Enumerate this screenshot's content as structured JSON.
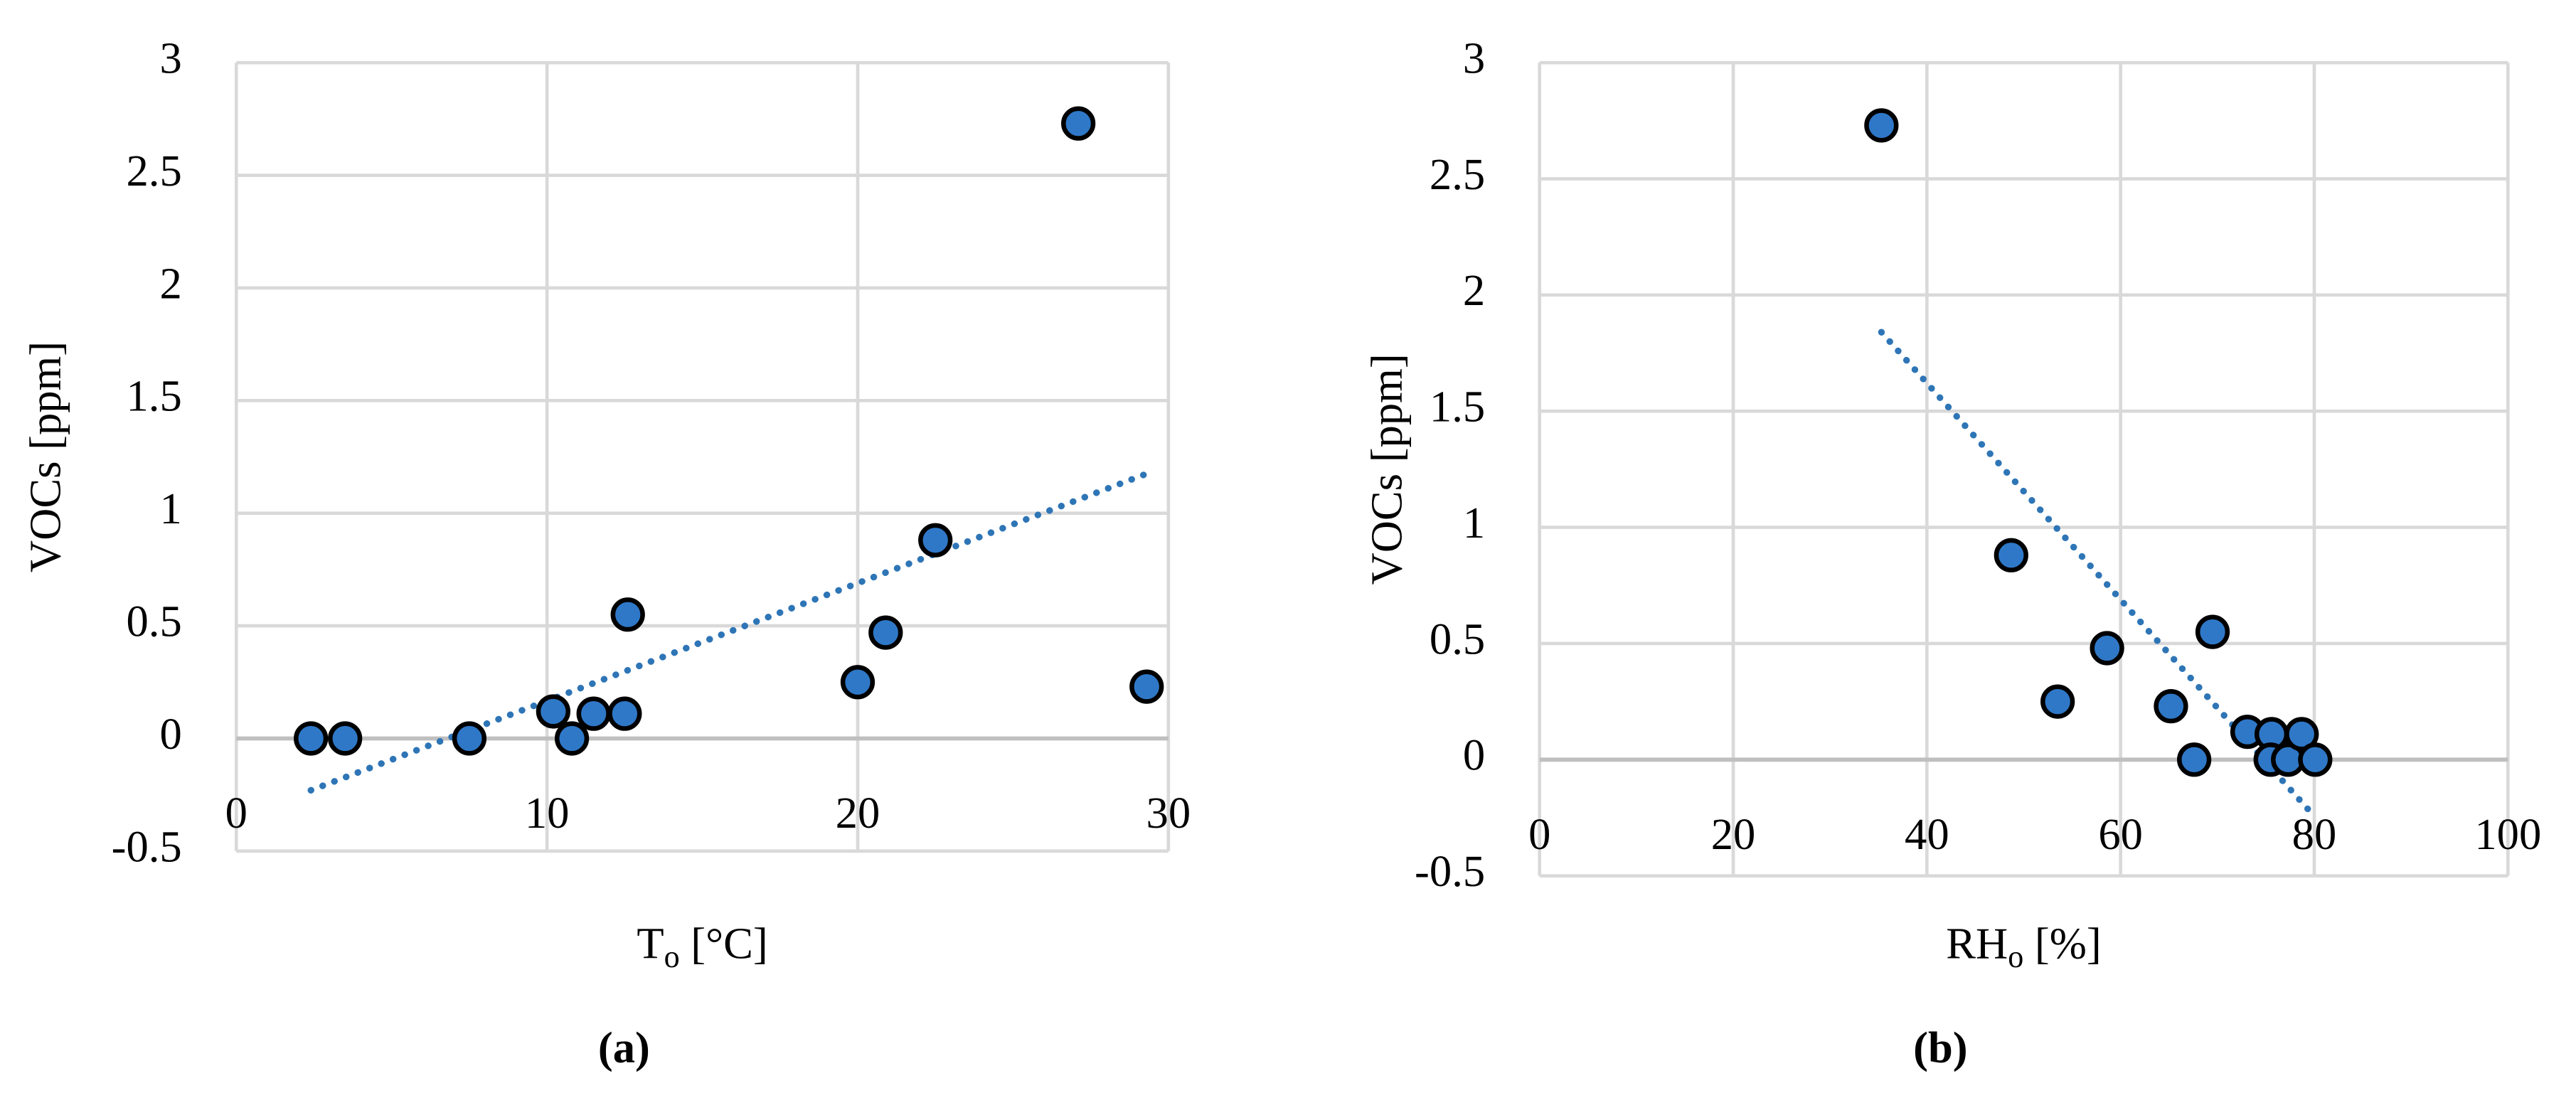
{
  "chart_data": [
    {
      "type": "scatter",
      "caption": "(a)",
      "y_label": "VOCs [ppm]",
      "x_label": {
        "main": "T",
        "sub": "o",
        "rest": " [°C]"
      },
      "xlim": [
        0,
        30
      ],
      "xticks": [
        0,
        10,
        20,
        30
      ],
      "ylim": [
        -0.5,
        3
      ],
      "yticks": [
        -0.5,
        0,
        0.5,
        1,
        1.5,
        2,
        2.5,
        3
      ],
      "grid": true,
      "color": "#2f78c8",
      "x": [
        2.4,
        3.5,
        7.5,
        10.2,
        10.8,
        11.5,
        12.5,
        12.6,
        20.0,
        20.9,
        22.5,
        27.1,
        29.3
      ],
      "values": [
        0,
        0,
        0,
        0.12,
        0,
        0.11,
        0.11,
        0.55,
        0.25,
        0.47,
        0.88,
        2.73,
        0.23
      ],
      "trendline": {
        "color": "#2e75b6",
        "x": [
          2.4,
          29.2
        ],
        "y": [
          -0.23,
          1.17
        ]
      }
    },
    {
      "type": "scatter",
      "caption": "(b)",
      "y_label": "VOCs [ppm]",
      "x_label": {
        "main": "RH",
        "sub": "o",
        "rest": " [%]"
      },
      "xlim": [
        0,
        100
      ],
      "xticks": [
        0,
        20,
        40,
        60,
        80,
        100
      ],
      "ylim": [
        -0.5,
        3
      ],
      "yticks": [
        -0.5,
        0,
        0.5,
        1,
        1.5,
        2,
        2.5,
        3
      ],
      "grid": true,
      "color": "#2f78c8",
      "x": [
        35.3,
        48.7,
        53.5,
        58.6,
        65.2,
        67.6,
        69.5,
        73.1,
        75.6,
        75.5,
        77.3,
        78.7,
        80.1
      ],
      "values": [
        2.73,
        0.88,
        0.25,
        0.48,
        0.23,
        0,
        0.55,
        0.12,
        0.11,
        0,
        0,
        0.11,
        0
      ],
      "trendline": {
        "color": "#2e75b6",
        "x": [
          35.3,
          79.5
        ],
        "y": [
          1.84,
          -0.22
        ]
      }
    }
  ]
}
